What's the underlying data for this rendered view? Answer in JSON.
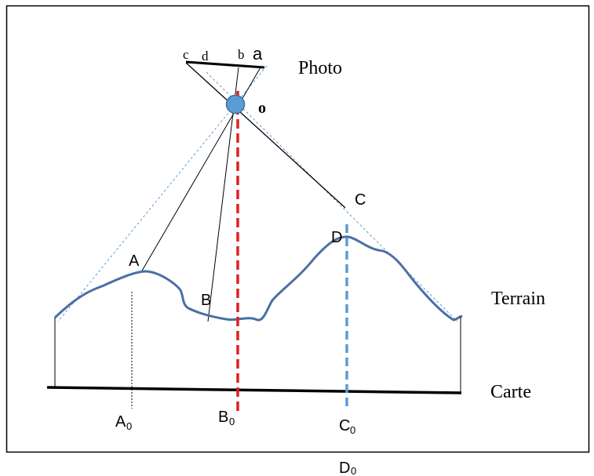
{
  "labels": {
    "photo": "Photo",
    "terrain": "Terrain",
    "carte": "Carte",
    "center": "o",
    "photo_c": "c",
    "photo_d": "d",
    "photo_b": "b",
    "photo_a": "a",
    "point_A": "A",
    "point_B": "B",
    "point_C": "C",
    "point_D": "D",
    "proj_A": "A",
    "proj_B": "B",
    "proj_C": "C",
    "proj_D": "D",
    "sub_0": "0"
  },
  "colors": {
    "terrain_line": "#4a6fa5",
    "nadir_line": "#e02020",
    "vertical_D": "#5b9bd5",
    "camera_center": "#5b9bd5",
    "field_of_view": "#5b9bd5",
    "rays": "#000000"
  }
}
